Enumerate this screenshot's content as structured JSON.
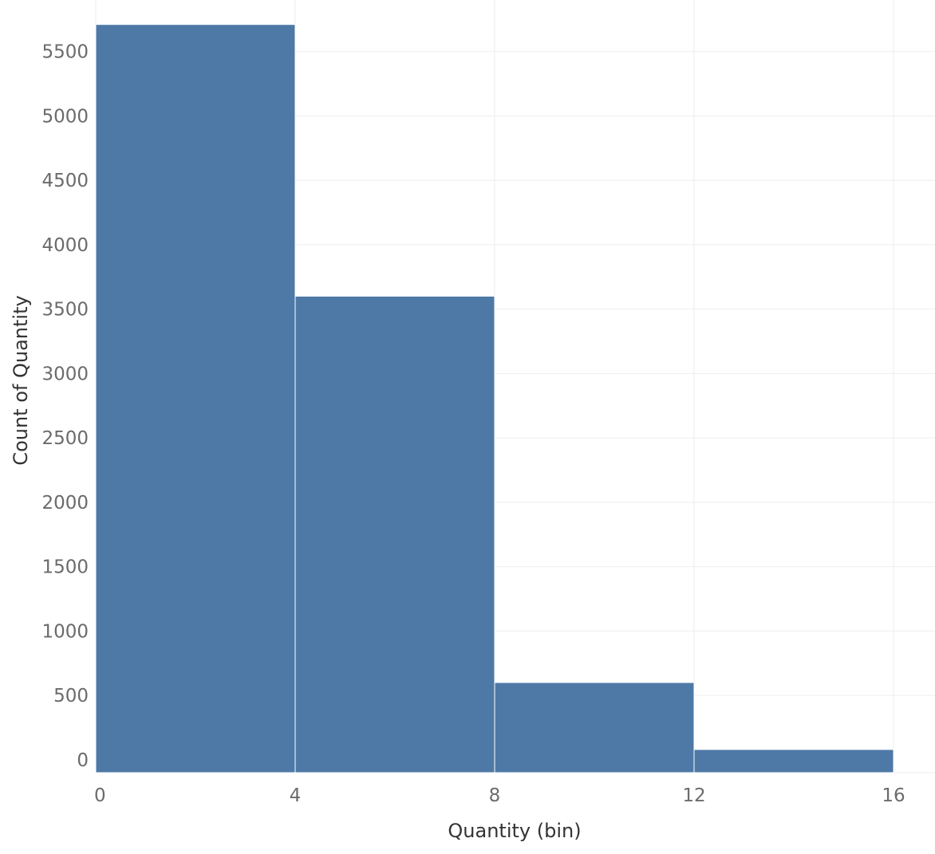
{
  "chart_data": {
    "type": "bar",
    "title": "",
    "xlabel": "Quantity (bin)",
    "ylabel": "Count of Quantity",
    "bins": [
      {
        "start": 0,
        "end": 4,
        "value": 5710
      },
      {
        "start": 4,
        "end": 8,
        "value": 3600
      },
      {
        "start": 8,
        "end": 12,
        "value": 600
      },
      {
        "start": 12,
        "end": 16,
        "value": 80
      }
    ],
    "x_ticks": [
      "0",
      "4",
      "8",
      "12",
      "16"
    ],
    "y_ticks": [
      "0",
      "500",
      "1000",
      "1500",
      "2000",
      "2500",
      "3000",
      "3500",
      "4000",
      "4500",
      "5000",
      "5500"
    ],
    "xlim": [
      0,
      16
    ],
    "ylim": [
      -100,
      5900
    ],
    "grid": true,
    "bar_color": "#4e79a7"
  }
}
